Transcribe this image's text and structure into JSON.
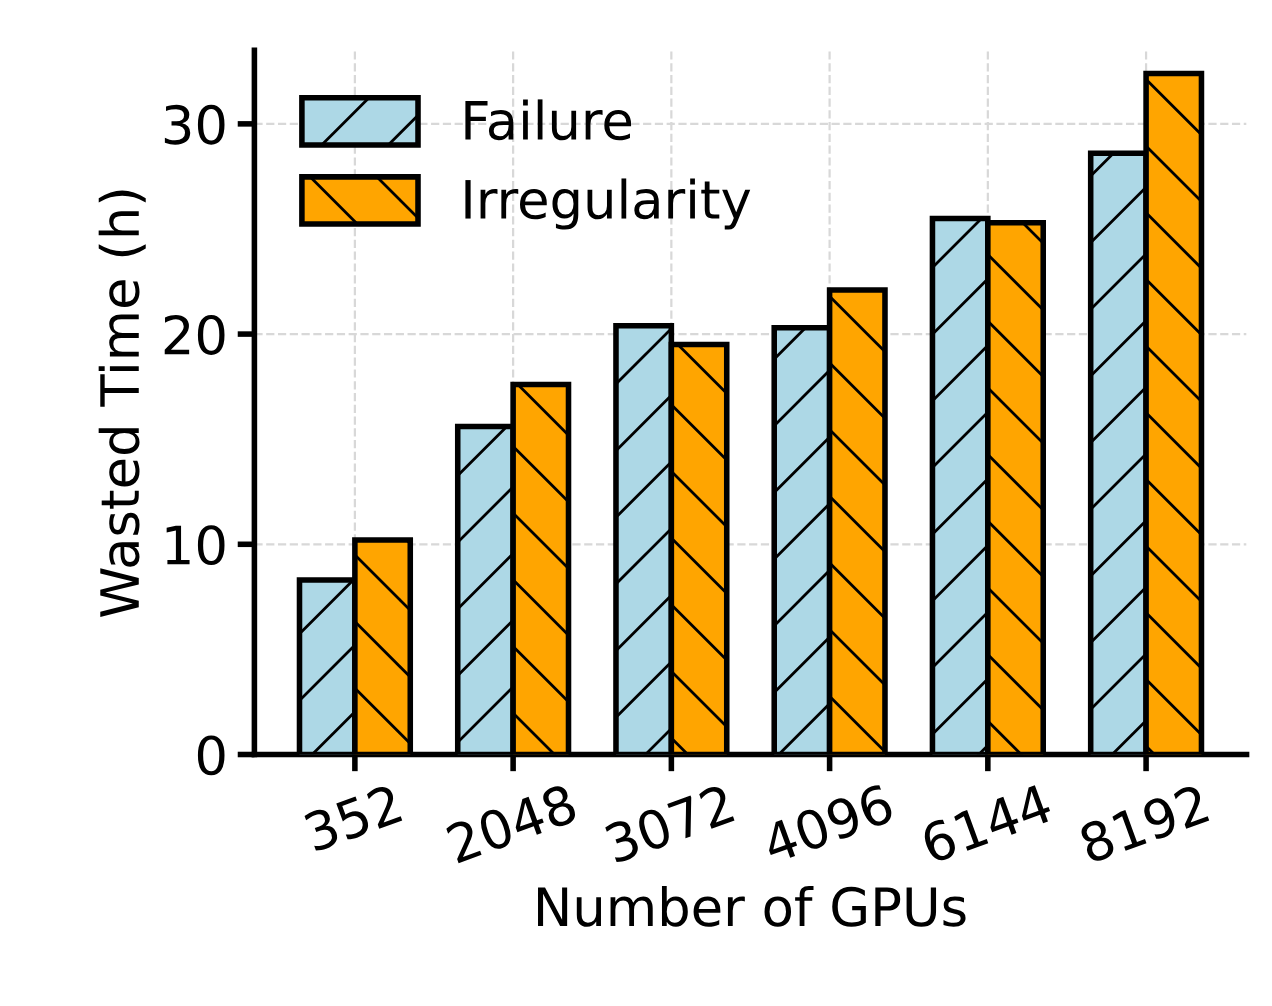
{
  "chart_data": {
    "type": "bar",
    "xlabel": "Number of GPUs",
    "ylabel": "Wasted Time (h)",
    "categories": [
      "352",
      "2048",
      "3072",
      "4096",
      "6144",
      "8192"
    ],
    "series": [
      {
        "name": "Failure",
        "color": "#add8e6",
        "values": [
          8.3,
          15.6,
          20.4,
          20.3,
          25.5,
          28.6
        ]
      },
      {
        "name": "Irregularity",
        "color": "#ffa500",
        "values": [
          10.2,
          17.6,
          19.5,
          22.1,
          25.3,
          32.4
        ]
      }
    ],
    "ylim": [
      0,
      33.5
    ],
    "yticks": [
      0,
      10,
      20,
      30
    ],
    "grid": true,
    "legend": "top left"
  }
}
